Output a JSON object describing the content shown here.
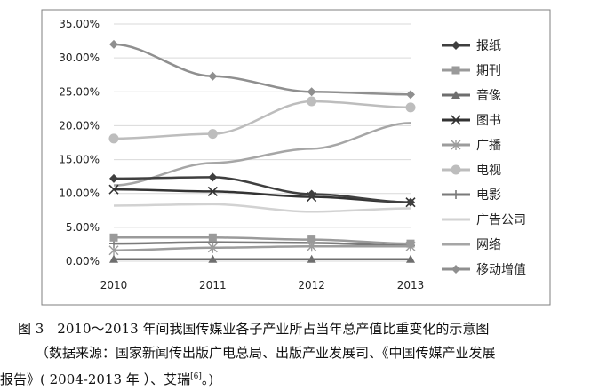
{
  "chart_data": {
    "type": "line",
    "x": [
      "2010",
      "2011",
      "2012",
      "2013"
    ],
    "yticks": [
      "0.00%",
      "5.00%",
      "10.00%",
      "15.00%",
      "20.00%",
      "25.00%",
      "30.00%",
      "35.00%"
    ],
    "ylim": [
      0,
      35
    ],
    "grid": "horizontal",
    "legend_position": "right",
    "series": [
      {
        "name": "报纸",
        "values": [
          12.2,
          12.4,
          9.9,
          8.7
        ],
        "color": "#3f3f3f",
        "marker": "diamond",
        "width": 2.5
      },
      {
        "name": "期刊",
        "values": [
          3.5,
          3.5,
          3.2,
          2.6
        ],
        "color": "#9a9a9a",
        "marker": "square",
        "width": 2.5
      },
      {
        "name": "音像",
        "values": [
          0.3,
          0.3,
          0.3,
          0.3
        ],
        "color": "#6e6e6e",
        "marker": "triangle",
        "width": 2.5
      },
      {
        "name": "图书",
        "values": [
          10.6,
          10.3,
          9.5,
          8.7
        ],
        "color": "#333333",
        "marker": "x",
        "width": 2.5
      },
      {
        "name": "广播",
        "values": [
          1.6,
          2.0,
          2.2,
          2.2
        ],
        "color": "#9c9c9c",
        "marker": "star",
        "width": 2.5
      },
      {
        "name": "电视",
        "values": [
          18.1,
          18.8,
          23.6,
          22.7
        ],
        "color": "#bdbdbd",
        "marker": "circle",
        "width": 2.5
      },
      {
        "name": "电影",
        "values": [
          2.6,
          2.8,
          2.7,
          2.3
        ],
        "color": "#7a7a7a",
        "marker": "plus",
        "width": 2.5
      },
      {
        "name": "广告公司",
        "values": [
          8.2,
          8.4,
          7.3,
          7.8
        ],
        "color": "#d2d2d2",
        "marker": "none",
        "width": 2.5
      },
      {
        "name": "网络",
        "values": [
          11.2,
          14.5,
          16.6,
          20.4
        ],
        "color": "#a6a6a6",
        "marker": "none",
        "width": 2.5
      },
      {
        "name": "移动增值",
        "values": [
          32.0,
          27.3,
          25.0,
          24.6
        ],
        "color": "#8f8f8f",
        "marker": "diamond",
        "width": 2.5
      }
    ]
  },
  "caption": {
    "line1": "图 3　2010～2013 年间我国传媒业各子产业所占当年总产值比重变化的示意图",
    "line2": "（数据来源：国家新闻传出版广电总局、出版产业发展司、《中国传媒产业发展",
    "line3_main": "报告》( 2004-2013 年 ）、艾瑞",
    "line3_ref": "[6]",
    "line3_end": "。)"
  }
}
